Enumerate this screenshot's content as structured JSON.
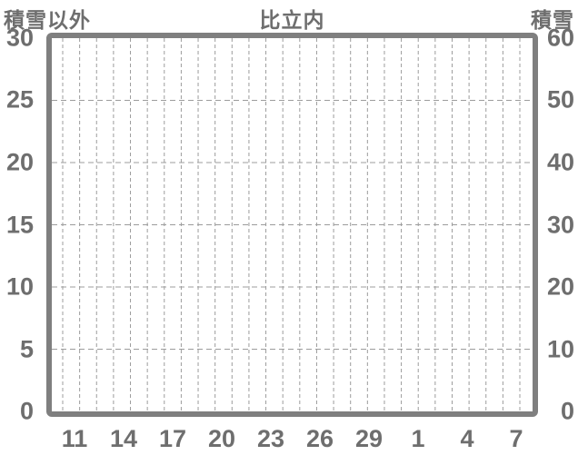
{
  "header": {
    "left_axis_title": "積雪以外",
    "chart_title": "比立内",
    "right_axis_title": "積雪"
  },
  "chart_data": {
    "type": "line",
    "title": "比立内",
    "series": [],
    "x_axis": {
      "tick_labels": [
        "11",
        "14",
        "17",
        "20",
        "23",
        "26",
        "29",
        "1",
        "4",
        "7"
      ]
    },
    "left_axis": {
      "title": "積雪以外",
      "ticks": [
        "30",
        "25",
        "20",
        "15",
        "10",
        "5",
        "0"
      ],
      "range": [
        0,
        30
      ]
    },
    "right_axis": {
      "title": "積雪",
      "ticks": [
        "60",
        "50",
        "40",
        "30",
        "20",
        "10",
        "0"
      ],
      "range": [
        0,
        60
      ]
    },
    "grid": {
      "style": "dashed",
      "vertical_lines": 28,
      "horizontal_lines": 5
    },
    "legend": "none",
    "plot_content": "empty"
  },
  "colors": {
    "background": "#ffffff",
    "plot_border": "#7f7f7f",
    "axis_text": "#6e6e6e",
    "gridline": "#9c9c9c"
  }
}
